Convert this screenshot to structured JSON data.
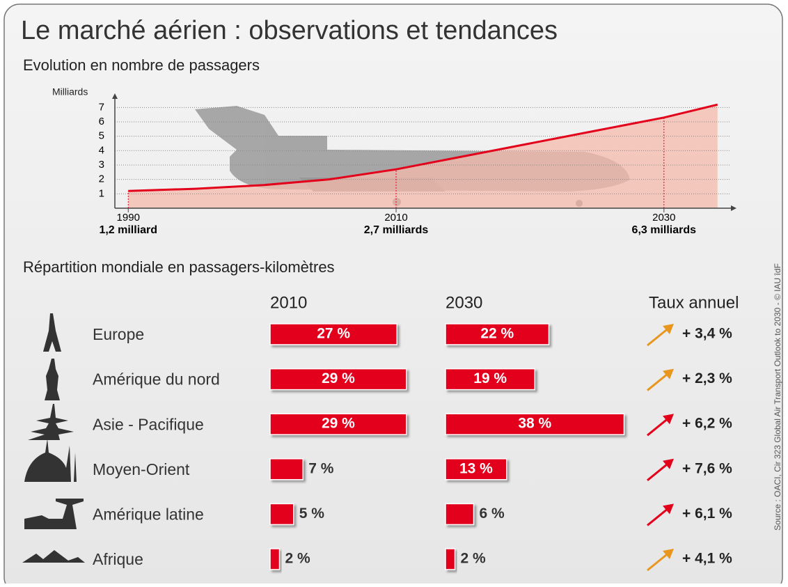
{
  "title": "Le marché aérien : observations et tendances",
  "source": "Source : OACI, Cir 323 Global Air Transport Outlook to 2030 - © IAU îdF",
  "chart_data": [
    {
      "type": "line",
      "title": "Evolution en nombre de passagers",
      "y_label": "Milliards",
      "x": [
        1990,
        1995,
        2000,
        2005,
        2010,
        2015,
        2020,
        2025,
        2030,
        2034
      ],
      "values": [
        1.2,
        1.35,
        1.6,
        2.0,
        2.7,
        3.6,
        4.5,
        5.4,
        6.3,
        7.2
      ],
      "color": "#e3001b",
      "area_color": "#f4b9a9",
      "xlim": [
        1989,
        2035
      ],
      "xticks": [
        1990,
        2010,
        2030
      ],
      "ylim": [
        0,
        7.5
      ],
      "yticks": [
        1,
        2,
        3,
        4,
        5,
        6,
        7
      ],
      "grid": true,
      "annotations": [
        {
          "x": 1990,
          "value": 1.2,
          "label": "1,2 milliard"
        },
        {
          "x": 2010,
          "value": 2.7,
          "label": "2,7 milliards"
        },
        {
          "x": 2030,
          "value": 6.3,
          "label": "6,3 milliards"
        }
      ]
    },
    {
      "type": "bar",
      "title": "Répartition mondiale en passagers-kilomètres",
      "categories": [
        "Europe",
        "Amérique du nord",
        "Asie - Pacifique",
        "Moyen-Orient",
        "Amérique latine",
        "Afrique"
      ],
      "xlim": [
        0,
        40
      ],
      "series": [
        {
          "name": "2010",
          "color": "#e3001b",
          "values": [
            27,
            29,
            29,
            7,
            5,
            2
          ],
          "value_labels": [
            "27 %",
            "29 %",
            "29 %",
            "7 %",
            "5 %",
            "2 %"
          ]
        },
        {
          "name": "2030",
          "color": "#e3001b",
          "values": [
            22,
            19,
            38,
            13,
            6,
            2
          ],
          "value_labels": [
            "22 %",
            "19 %",
            "38 %",
            "13 %",
            "6 %",
            "2 %"
          ]
        }
      ],
      "rate": {
        "name": "Taux annuel",
        "values": [
          3.4,
          2.3,
          6.2,
          7.6,
          6.1,
          4.1
        ],
        "value_labels": [
          "+ 3,4 %",
          "+ 2,3 %",
          "+ 6,2 %",
          "+ 7,6 %",
          "+ 6,1 %",
          "+ 4,1 %"
        ],
        "colors": [
          "#e8961e",
          "#e8961e",
          "#e3001b",
          "#e3001b",
          "#e3001b",
          "#e8961e"
        ]
      }
    }
  ]
}
